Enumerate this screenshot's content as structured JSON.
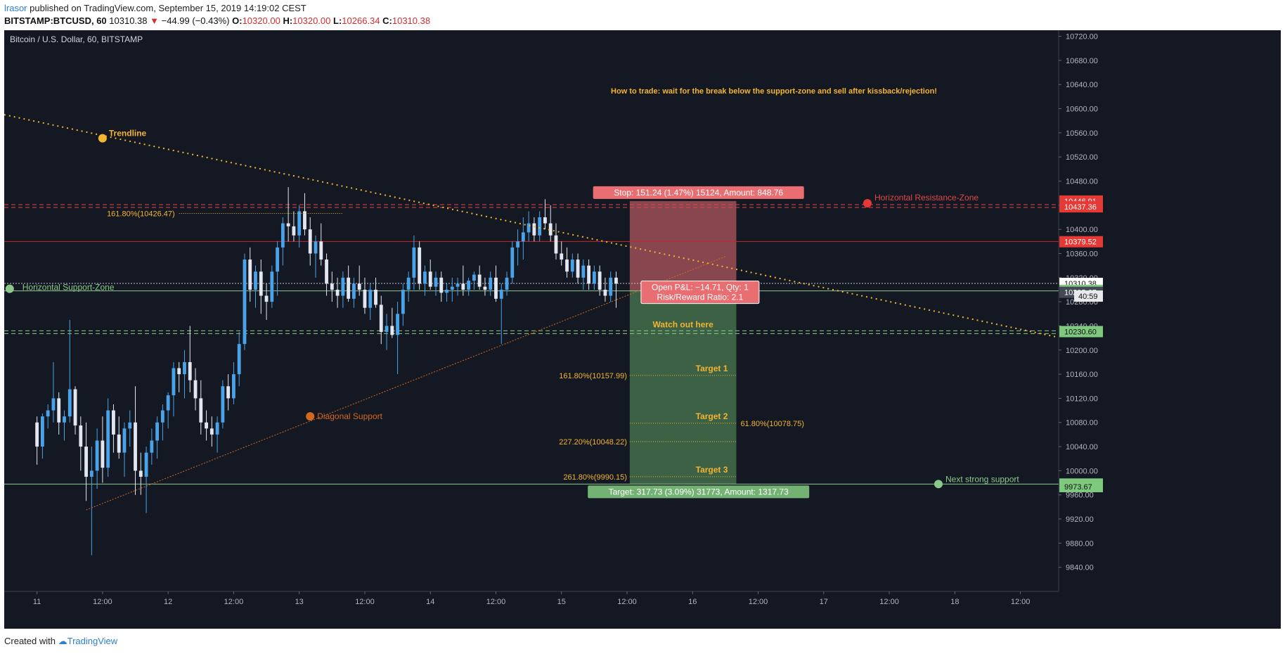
{
  "header": {
    "author": "lrasor",
    "published": " published on TradingView.com, September 15, 2019 14:19:02 CEST",
    "symbol": "BITSTAMP:BTCUSD, 60",
    "last": "10310.38",
    "change_arrow": "▼",
    "change": "−44.99 (−0.43%)",
    "o_label": "O:",
    "o_value": "10320.00",
    "h_label": "H:",
    "h_value": "10320.00",
    "l_label": "L:",
    "l_value": "10266.34",
    "c_label": "C:",
    "c_value": "10310.38"
  },
  "footer": {
    "created_with": "Created with",
    "brand": "TradingView"
  },
  "chart_data": {
    "type": "candlestick",
    "title": "Bitcoin / U.S. Dollar, 60, BITSTAMP",
    "ylim": [
      9800,
      10730
    ],
    "xlim": [
      -6,
      187
    ],
    "y_ticks": [
      9840,
      9880,
      9920,
      9960,
      10000,
      10040,
      10080,
      10120,
      10160,
      10200,
      10240,
      10280,
      10320,
      10360,
      10400,
      10440,
      10480,
      10520,
      10560,
      10600,
      10640,
      10680,
      10720
    ],
    "x_ticks": [
      {
        "x": 0,
        "label": "11"
      },
      {
        "x": 12,
        "label": "12:00"
      },
      {
        "x": 24,
        "label": "12"
      },
      {
        "x": 36,
        "label": "12:00"
      },
      {
        "x": 48,
        "label": "13"
      },
      {
        "x": 60,
        "label": "12:00"
      },
      {
        "x": 72,
        "label": "14"
      },
      {
        "x": 84,
        "label": "12:00"
      },
      {
        "x": 96,
        "label": "15"
      },
      {
        "x": 108,
        "label": "12:00"
      },
      {
        "x": 120,
        "label": "16"
      },
      {
        "x": 132,
        "label": "12:00"
      },
      {
        "x": 144,
        "label": "17"
      },
      {
        "x": 156,
        "label": "12:00"
      },
      {
        "x": 168,
        "label": "18"
      },
      {
        "x": 180,
        "label": "12:00"
      },
      {
        "x": 192,
        "label": "19"
      }
    ],
    "up_color": "#4aa3e8",
    "down_color": "#e3e6ee",
    "ohlc": [
      [
        10080,
        10090,
        10010,
        10040
      ],
      [
        10040,
        10095,
        10020,
        10090
      ],
      [
        10090,
        10110,
        10070,
        10100
      ],
      [
        10100,
        10180,
        10080,
        10120
      ],
      [
        10120,
        10130,
        10060,
        10080
      ],
      [
        10080,
        10100,
        10050,
        10090
      ],
      [
        10090,
        10250,
        10080,
        10135
      ],
      [
        10135,
        10140,
        10060,
        10075
      ],
      [
        10075,
        10090,
        10000,
        10040
      ],
      [
        10040,
        10080,
        9950,
        9990
      ],
      [
        9990,
        10040,
        9860,
        10000
      ],
      [
        10000,
        10070,
        9970,
        10050
      ],
      [
        10050,
        10090,
        9980,
        10005
      ],
      [
        10005,
        10120,
        9990,
        10100
      ],
      [
        10100,
        10110,
        10030,
        10060
      ],
      [
        10060,
        10090,
        10020,
        10030
      ],
      [
        10030,
        10080,
        9990,
        10070
      ],
      [
        10070,
        10100,
        10040,
        10080
      ],
      [
        10080,
        10140,
        9960,
        10000
      ],
      [
        10000,
        10030,
        9960,
        9990
      ],
      [
        9990,
        10040,
        9930,
        10030
      ],
      [
        10030,
        10070,
        10010,
        10050
      ],
      [
        10050,
        10090,
        10020,
        10080
      ],
      [
        10080,
        10110,
        10050,
        10100
      ],
      [
        10100,
        10130,
        10070,
        10125
      ],
      [
        10125,
        10180,
        10090,
        10170
      ],
      [
        10170,
        10180,
        10130,
        10160
      ],
      [
        10160,
        10200,
        10120,
        10180
      ],
      [
        10180,
        10240,
        10130,
        10150
      ],
      [
        10150,
        10170,
        10100,
        10120
      ],
      [
        10120,
        10150,
        10060,
        10080
      ],
      [
        10080,
        10100,
        10050,
        10070
      ],
      [
        10070,
        10090,
        10040,
        10060
      ],
      [
        10060,
        10090,
        10030,
        10080
      ],
      [
        10080,
        10150,
        10070,
        10140
      ],
      [
        10140,
        10160,
        10100,
        10120
      ],
      [
        10120,
        10180,
        10110,
        10160
      ],
      [
        10160,
        10230,
        10140,
        10210
      ],
      [
        10210,
        10360,
        10200,
        10350
      ],
      [
        10350,
        10370,
        10280,
        10300
      ],
      [
        10300,
        10340,
        10270,
        10330
      ],
      [
        10330,
        10350,
        10260,
        10290
      ],
      [
        10290,
        10310,
        10250,
        10280
      ],
      [
        10280,
        10340,
        10270,
        10330
      ],
      [
        10330,
        10380,
        10290,
        10370
      ],
      [
        10370,
        10420,
        10340,
        10410
      ],
      [
        10410,
        10470,
        10380,
        10405
      ],
      [
        10405,
        10430,
        10380,
        10390
      ],
      [
        10390,
        10440,
        10370,
        10430
      ],
      [
        10430,
        10460,
        10390,
        10400
      ],
      [
        10400,
        10420,
        10340,
        10360
      ],
      [
        10360,
        10390,
        10320,
        10380
      ],
      [
        10380,
        10410,
        10340,
        10350
      ],
      [
        10350,
        10360,
        10290,
        10310
      ],
      [
        10310,
        10330,
        10280,
        10300
      ],
      [
        10300,
        10320,
        10270,
        10290
      ],
      [
        10290,
        10330,
        10270,
        10320
      ],
      [
        10320,
        10340,
        10280,
        10285
      ],
      [
        10285,
        10320,
        10270,
        10310
      ],
      [
        10310,
        10340,
        10290,
        10300
      ],
      [
        10300,
        10320,
        10260,
        10270
      ],
      [
        10270,
        10310,
        10250,
        10300
      ],
      [
        10300,
        10320,
        10270,
        10275
      ],
      [
        10275,
        10290,
        10210,
        10230
      ],
      [
        10230,
        10260,
        10200,
        10240
      ],
      [
        10240,
        10270,
        10220,
        10225
      ],
      [
        10225,
        10280,
        10160,
        10260
      ],
      [
        10260,
        10310,
        10240,
        10300
      ],
      [
        10300,
        10330,
        10280,
        10320
      ],
      [
        10320,
        10390,
        10300,
        10370
      ],
      [
        10370,
        10380,
        10300,
        10310
      ],
      [
        10310,
        10340,
        10290,
        10330
      ],
      [
        10330,
        10350,
        10300,
        10305
      ],
      [
        10305,
        10330,
        10290,
        10320
      ],
      [
        10320,
        10330,
        10280,
        10295
      ],
      [
        10295,
        10310,
        10280,
        10300
      ],
      [
        10300,
        10320,
        10280,
        10305
      ],
      [
        10305,
        10320,
        10290,
        10310
      ],
      [
        10310,
        10340,
        10290,
        10300
      ],
      [
        10300,
        10320,
        10290,
        10315
      ],
      [
        10315,
        10330,
        10300,
        10325
      ],
      [
        10325,
        10340,
        10300,
        10305
      ],
      [
        10305,
        10320,
        10290,
        10300
      ],
      [
        10300,
        10330,
        10290,
        10320
      ],
      [
        10320,
        10340,
        10280,
        10285
      ],
      [
        10285,
        10310,
        10210,
        10300
      ],
      [
        10300,
        10330,
        10290,
        10320
      ],
      [
        10320,
        10380,
        10310,
        10370
      ],
      [
        10370,
        10400,
        10340,
        10380
      ],
      [
        10380,
        10420,
        10350,
        10395
      ],
      [
        10395,
        10430,
        10380,
        10410
      ],
      [
        10410,
        10420,
        10380,
        10390
      ],
      [
        10390,
        10430,
        10380,
        10420
      ],
      [
        10420,
        10450,
        10400,
        10410
      ],
      [
        10410,
        10440,
        10380,
        10390
      ],
      [
        10390,
        10410,
        10350,
        10360
      ],
      [
        10360,
        10380,
        10340,
        10350
      ],
      [
        10350,
        10370,
        10320,
        10330
      ],
      [
        10330,
        10360,
        10320,
        10350
      ],
      [
        10350,
        10360,
        10310,
        10320
      ],
      [
        10320,
        10350,
        10300,
        10340
      ],
      [
        10340,
        10350,
        10300,
        10310
      ],
      [
        10310,
        10340,
        10300,
        10330
      ],
      [
        10330,
        10340,
        10290,
        10300
      ],
      [
        10300,
        10320,
        10280,
        10290
      ],
      [
        10290,
        10330,
        10280,
        10320
      ],
      [
        10320,
        10330,
        10270,
        10310
      ]
    ],
    "annotations": {
      "instruction": "How to trade: wait for the break below the support-zone and sell after kissback/rejection!",
      "trendline_label": "Trendline",
      "diagonal_label": "Diagonal Support",
      "support_zone_label": "Horizontal Support-Zone",
      "resistance_zone_label": "Horizontal Resistance-Zone",
      "next_support_label": "Next strong support",
      "watch_label": "Watch out here",
      "target1": "Target 1",
      "target2": "Target 2",
      "target3": "Target 3",
      "fib_left_top": "161.80%(10426.47)",
      "fib_t1": "161.80%(10157.99)",
      "fib_mid_right": "61.80%(10078.75)",
      "fib_t2b": "227.20%(10048.22)",
      "fib_t3": "261.80%(9990.15)",
      "stop_box": "Stop: 151.24 (1.47%) 15124, Amount: 848.76",
      "target_box": "Target: 317.73 (3.09%) 31773, Amount: 1317.73",
      "pnl_line1": "Open P&L: −14.71, Qty: 1",
      "pnl_line2": "Risk/Reward Ratio: 2.1"
    },
    "price_tags": [
      {
        "value": 10446.91,
        "label": "10446.91",
        "bg": "#e53935",
        "fg": "#ffffff"
      },
      {
        "value": 10437.36,
        "label": "10437.36",
        "bg": "#e53935",
        "fg": "#ffffff"
      },
      {
        "value": 10379.52,
        "label": "10379.52",
        "bg": "#e53935",
        "fg": "#ffffff"
      },
      {
        "value": 10310.38,
        "label": "10310.38",
        "bg": "#ffffff",
        "fg": "#111111"
      },
      {
        "value": 10298.81,
        "label": "10298.81",
        "bg": "#7ec97e",
        "fg": "#111111"
      },
      {
        "value": 10295.67,
        "label": "10295.67",
        "bg": "#444a55",
        "fg": "#ffffff"
      },
      {
        "value": 10230.6,
        "label": "10230.60",
        "bg": "#7ec97e",
        "fg": "#111111"
      },
      {
        "value": 9977.94,
        "label": "9977.94",
        "bg": "#7ec97e",
        "fg": "#111111"
      },
      {
        "value": 9973.67,
        "label": "9973.67",
        "bg": "#7ec97e",
        "fg": "#111111"
      }
    ],
    "countdown": "40:59",
    "levels": {
      "resistance": 10441,
      "stop_line": 10380,
      "last": 10310.38,
      "support": 10298,
      "watch": 10232,
      "entry": 10298,
      "stop": 10446.91,
      "target": 9977.94,
      "fib_left_top": 10426.47,
      "fib_t1": 10157.99,
      "fib_t2": 10078.75,
      "fib_t2b": 10048.22,
      "fib_t3": 9990.15
    },
    "colors": {
      "background": "#141823",
      "grid": "#1f2430",
      "trend": "#f3b431",
      "diagonal": "#d2691e",
      "support": "#8bc98b",
      "resistance": "#e04848",
      "stop_fill": "#e86e72",
      "target_fill": "#5f9e62",
      "fib": "#f3b431"
    }
  }
}
